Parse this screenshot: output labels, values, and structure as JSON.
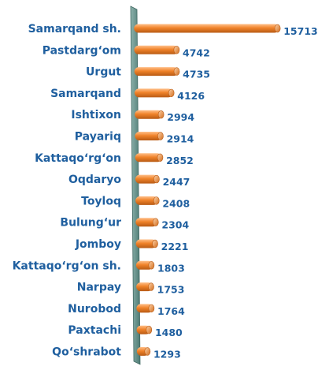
{
  "chart_data": {
    "type": "bar",
    "orientation": "horizontal",
    "categories": [
      "Samarqand sh.",
      "Pastdarg‘om",
      "Urgut",
      "Samarqand",
      "Ishtixon",
      "Payariq",
      "Kattaqo‘rg‘on",
      "Oqdaryo",
      "Toyloq",
      "Bulung‘ur",
      "Jomboy",
      "Kattaqo‘rg‘on sh.",
      "Narpay",
      "Nurobod",
      "Paxtachi",
      "Qo‘shrabot"
    ],
    "values": [
      15713,
      4742,
      4735,
      4126,
      2994,
      2914,
      2852,
      2447,
      2408,
      2304,
      2221,
      1803,
      1753,
      1764,
      1480,
      1293
    ],
    "colors": {
      "bar": "#f0832a",
      "bar_light": "#ffc08a",
      "bar_dark": "#b85a14",
      "axis_wall": "#6f9a93",
      "label": "#1f5f9f"
    },
    "grid": false,
    "legend": "none"
  }
}
